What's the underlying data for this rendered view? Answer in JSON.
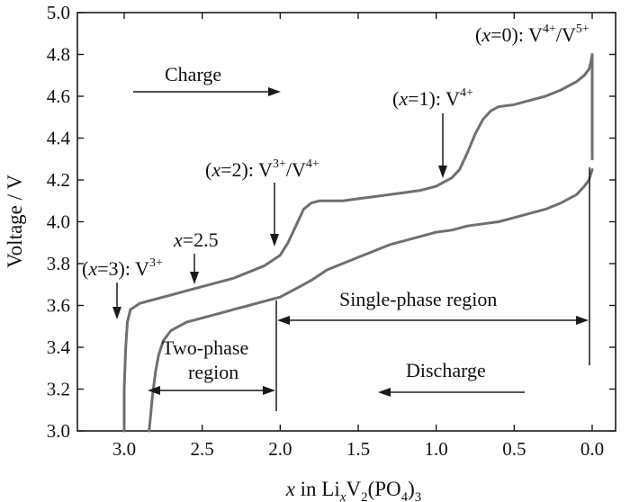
{
  "chart_data": {
    "type": "line",
    "xlabel": "x in LixV2(PO4)3",
    "xlabel_parts": {
      "var": "x",
      "pre": " in Li",
      "sub1": "x",
      "mid1": "V",
      "sub2": "2",
      "mid2": "(PO",
      "sub3": "4",
      "post": ")",
      "sub4": "3"
    },
    "ylabel": "Voltage / V",
    "xlim": [
      3.3,
      -0.15
    ],
    "ylim": [
      3.0,
      5.0
    ],
    "xticks": [
      3.0,
      2.5,
      2.0,
      1.5,
      1.0,
      0.5,
      0.0
    ],
    "xtick_labels": [
      "3.0",
      "2.5",
      "2.0",
      "1.5",
      "1.0",
      "0.5",
      "0.0"
    ],
    "yticks": [
      3.0,
      3.2,
      3.4,
      3.6,
      3.8,
      4.0,
      4.2,
      4.4,
      4.6,
      4.8,
      5.0
    ],
    "ytick_labels": [
      "3.0",
      "3.2",
      "3.4",
      "3.6",
      "3.8",
      "4.0",
      "4.2",
      "4.4",
      "4.6",
      "4.8",
      "5.0"
    ],
    "series": [
      {
        "name": "Charge",
        "x": [
          3.0,
          3.0,
          2.99,
          2.98,
          2.96,
          2.9,
          2.8,
          2.7,
          2.6,
          2.5,
          2.4,
          2.3,
          2.2,
          2.1,
          2.0,
          1.95,
          1.9,
          1.85,
          1.8,
          1.75,
          1.7,
          1.6,
          1.5,
          1.4,
          1.3,
          1.2,
          1.1,
          1.0,
          0.95,
          0.9,
          0.85,
          0.8,
          0.75,
          0.7,
          0.65,
          0.6,
          0.5,
          0.4,
          0.3,
          0.2,
          0.1,
          0.05,
          0.02,
          0.01,
          0.0,
          0.0
        ],
        "y": [
          3.0,
          3.2,
          3.4,
          3.52,
          3.58,
          3.61,
          3.63,
          3.65,
          3.67,
          3.69,
          3.71,
          3.73,
          3.76,
          3.79,
          3.84,
          3.9,
          3.98,
          4.06,
          4.09,
          4.1,
          4.1,
          4.1,
          4.11,
          4.12,
          4.13,
          4.14,
          4.15,
          4.17,
          4.19,
          4.21,
          4.25,
          4.33,
          4.42,
          4.49,
          4.53,
          4.55,
          4.56,
          4.58,
          4.6,
          4.63,
          4.67,
          4.7,
          4.73,
          4.76,
          4.8,
          4.3
        ]
      },
      {
        "name": "Discharge",
        "x": [
          0.0,
          0.02,
          0.05,
          0.1,
          0.2,
          0.3,
          0.4,
          0.5,
          0.6,
          0.7,
          0.8,
          0.9,
          1.0,
          1.1,
          1.2,
          1.3,
          1.4,
          1.5,
          1.6,
          1.7,
          1.8,
          1.9,
          2.0,
          2.1,
          2.2,
          2.3,
          2.4,
          2.5,
          2.6,
          2.7,
          2.75,
          2.78,
          2.8,
          2.82,
          2.83,
          2.84
        ],
        "y": [
          4.25,
          4.2,
          4.17,
          4.13,
          4.09,
          4.06,
          4.04,
          4.02,
          4.0,
          3.99,
          3.98,
          3.96,
          3.95,
          3.93,
          3.91,
          3.89,
          3.86,
          3.83,
          3.8,
          3.77,
          3.72,
          3.68,
          3.64,
          3.62,
          3.6,
          3.58,
          3.56,
          3.54,
          3.52,
          3.48,
          3.43,
          3.36,
          3.28,
          3.16,
          3.08,
          3.0
        ]
      }
    ],
    "annotations": {
      "x0": "(x=0): V4+/V5+",
      "x1": "(x=1): V4+",
      "x2": "(x=2): V3+/V4+",
      "x25": "x=2.5",
      "x3": "(x=3): V3+",
      "charge": "Charge",
      "discharge": "Discharge",
      "single_phase": "Single-phase region",
      "two_phase_1": "Two-phase",
      "two_phase_2": "region"
    },
    "annotation_parts": {
      "x0": {
        "open": "(",
        "var": "x",
        "eq": "=0): V",
        "sup1": "4+",
        "slash": "/V",
        "sup2": "5+"
      },
      "x1": {
        "open": "(",
        "var": "x",
        "eq": "=1): V",
        "sup1": "4+"
      },
      "x2": {
        "open": "(",
        "var": "x",
        "eq": "=2): V",
        "sup1": "3+",
        "slash": "/V",
        "sup2": "4+"
      },
      "x25": {
        "var": "x",
        "eq": "=2.5"
      },
      "x3": {
        "open": "(",
        "var": "x",
        "eq": "=3): V",
        "sup1": "3+"
      }
    },
    "colors": {
      "curve": "#6f6f6f",
      "axis": "#1a1a1a"
    }
  }
}
